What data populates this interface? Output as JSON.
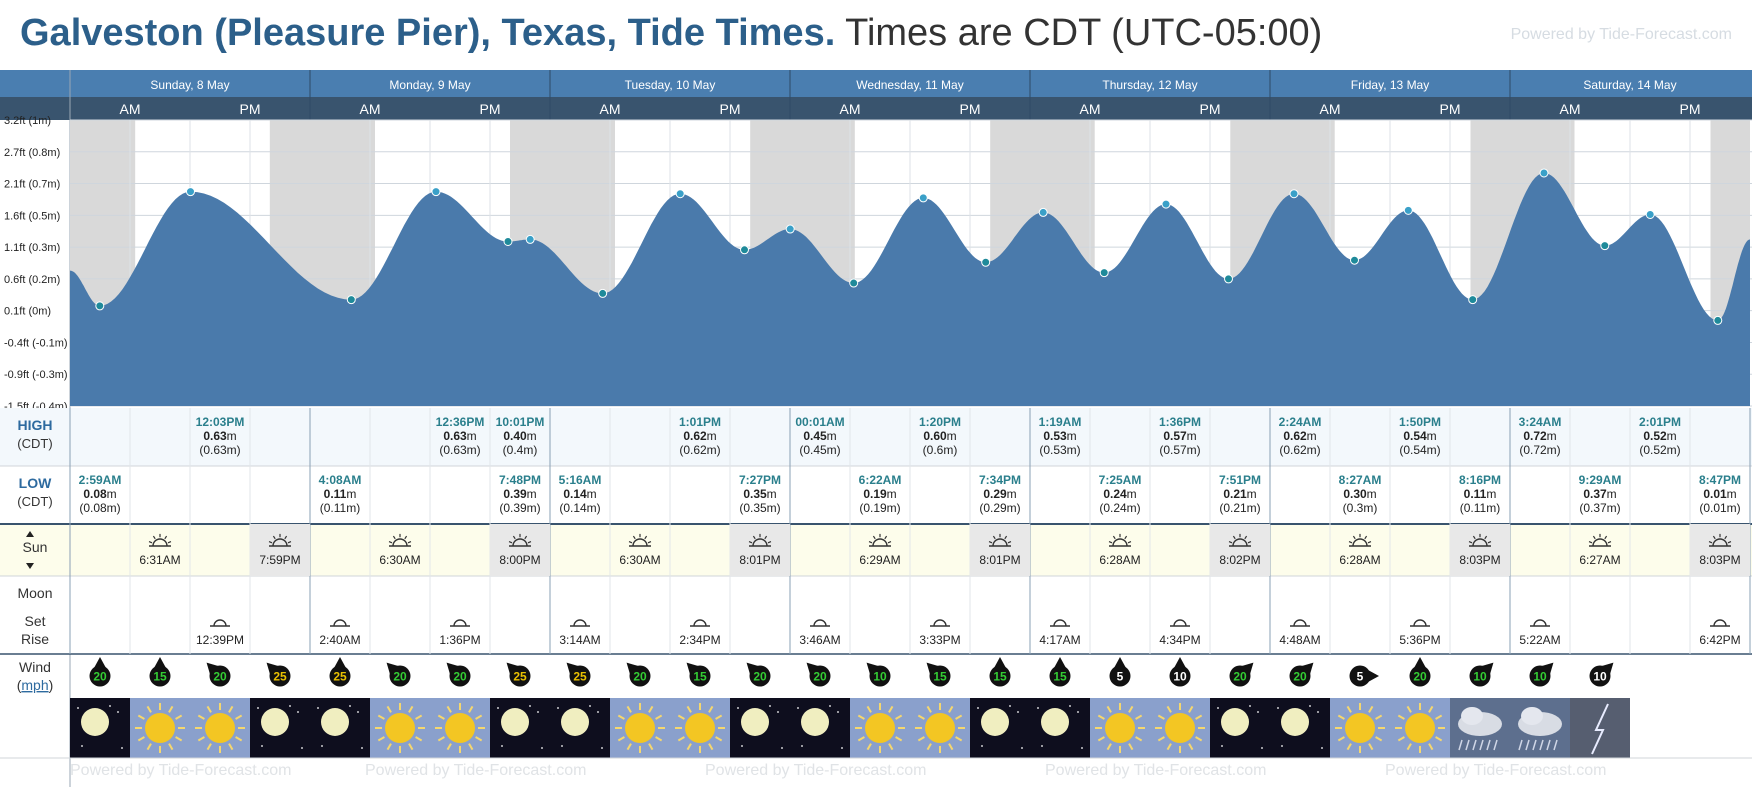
{
  "title": {
    "location": "Galveston (Pleasure Pier), Texas, Tide Times.",
    "tz": "Times are CDT (UTC-05:00)"
  },
  "powered": "Powered by Tide-Forecast.com",
  "watermark": "Powered by Tide-Forecast.com",
  "days": [
    "Sunday, 8 May",
    "Monday, 9 May",
    "Tuesday, 10 May",
    "Wednesday, 11 May",
    "Thursday, 12 May",
    "Friday, 13 May",
    "Saturday, 14 May"
  ],
  "ampm": [
    "AM",
    "PM"
  ],
  "row_labels": {
    "high": "HIGH",
    "high_tz": "(CDT)",
    "low": "LOW",
    "low_tz": "(CDT)",
    "sun": "Sun",
    "moon": "Moon",
    "moon_set": "Set",
    "moon_rise": "Rise",
    "wind": "Wind",
    "wind_unit": "mph"
  },
  "colors": {
    "header_bg": "#4a7eb0",
    "ampm_bg": "#39546e",
    "water": "#4a7aab",
    "night": "#d9d9d9",
    "high_bg": "#f3f8fc",
    "sun_bg": "#fdfdeb",
    "sunset_bg": "#e8e8e8",
    "label_blue": "#2d6a9f",
    "time_teal": "#2a7f8c"
  },
  "chart_data": {
    "type": "area",
    "ylabel": "",
    "y_ticks": [
      "3.2ft (1m)",
      "2.7ft (0.8m)",
      "2.1ft (0.7m)",
      "1.6ft (0.5m)",
      "1.1ft (0.3m)",
      "0.6ft (0.2m)",
      "0.1ft (0m)",
      "-0.4ft (-0.1m)",
      "-0.9ft (-0.3m)",
      "-1.5ft (-0.4m)"
    ],
    "y_tick_values": [
      0.975,
      0.822,
      0.669,
      0.516,
      0.363,
      0.21,
      0.057,
      -0.096,
      -0.249,
      -0.402
    ],
    "ylim": [
      -0.402,
      0.975
    ],
    "x_range_hours": [
      0,
      168
    ],
    "extremes": [
      {
        "time": "2:59AM",
        "t": 2.98,
        "h": 0.08,
        "type": "low"
      },
      {
        "time": "12:03PM",
        "t": 12.05,
        "h": 0.63,
        "type": "high"
      },
      {
        "time": "4:08AM",
        "t": 28.13,
        "h": 0.11,
        "type": "low"
      },
      {
        "time": "12:36PM",
        "t": 36.6,
        "h": 0.63,
        "type": "high"
      },
      {
        "time": "7:48PM",
        "t": 43.8,
        "h": 0.39,
        "type": "low"
      },
      {
        "time": "10:01PM",
        "t": 46.02,
        "h": 0.4,
        "type": "high"
      },
      {
        "time": "5:16AM",
        "t": 53.27,
        "h": 0.14,
        "type": "low"
      },
      {
        "time": "1:01PM",
        "t": 61.02,
        "h": 0.62,
        "type": "high"
      },
      {
        "time": "7:27PM",
        "t": 67.45,
        "h": 0.35,
        "type": "low"
      },
      {
        "time": "00:01AM",
        "t": 72.02,
        "h": 0.45,
        "type": "high"
      },
      {
        "time": "6:22AM",
        "t": 78.37,
        "h": 0.19,
        "type": "low"
      },
      {
        "time": "1:20PM",
        "t": 85.33,
        "h": 0.6,
        "type": "high"
      },
      {
        "time": "7:34PM",
        "t": 91.57,
        "h": 0.29,
        "type": "low"
      },
      {
        "time": "1:19AM",
        "t": 97.32,
        "h": 0.53,
        "type": "high"
      },
      {
        "time": "7:25AM",
        "t": 103.42,
        "h": 0.24,
        "type": "low"
      },
      {
        "time": "1:36PM",
        "t": 109.6,
        "h": 0.57,
        "type": "high"
      },
      {
        "time": "7:51PM",
        "t": 115.85,
        "h": 0.21,
        "type": "low"
      },
      {
        "time": "2:24AM",
        "t": 122.4,
        "h": 0.62,
        "type": "high"
      },
      {
        "time": "8:27AM",
        "t": 128.45,
        "h": 0.3,
        "type": "low"
      },
      {
        "time": "1:50PM",
        "t": 133.83,
        "h": 0.54,
        "type": "high"
      },
      {
        "time": "8:16PM",
        "t": 140.27,
        "h": 0.11,
        "type": "low"
      },
      {
        "time": "3:24AM",
        "t": 147.4,
        "h": 0.72,
        "type": "high"
      },
      {
        "time": "9:29AM",
        "t": 153.48,
        "h": 0.37,
        "type": "low"
      },
      {
        "time": "2:01PM",
        "t": 158.02,
        "h": 0.52,
        "type": "high"
      },
      {
        "time": "8:47PM",
        "t": 164.78,
        "h": 0.01,
        "type": "low"
      }
    ],
    "start_level": 0.25,
    "end_level": 0.4
  },
  "high_cells": [
    null,
    null,
    {
      "time": "12:03PM",
      "m": "0.63",
      "ft": "(0.63m)"
    },
    null,
    null,
    null,
    {
      "time": "12:36PM",
      "m": "0.63",
      "ft": "(0.63m)"
    },
    {
      "time": "10:01PM",
      "m": "0.40",
      "ft": "(0.4m)"
    },
    null,
    null,
    {
      "time": "1:01PM",
      "m": "0.62",
      "ft": "(0.62m)"
    },
    null,
    {
      "time": "00:01AM",
      "m": "0.45",
      "ft": "(0.45m)"
    },
    null,
    {
      "time": "1:20PM",
      "m": "0.60",
      "ft": "(0.6m)"
    },
    null,
    {
      "time": "1:19AM",
      "m": "0.53",
      "ft": "(0.53m)"
    },
    null,
    {
      "time": "1:36PM",
      "m": "0.57",
      "ft": "(0.57m)"
    },
    null,
    {
      "time": "2:24AM",
      "m": "0.62",
      "ft": "(0.62m)"
    },
    null,
    {
      "time": "1:50PM",
      "m": "0.54",
      "ft": "(0.54m)"
    },
    null,
    {
      "time": "3:24AM",
      "m": "0.72",
      "ft": "(0.72m)"
    },
    null,
    {
      "time": "2:01PM",
      "m": "0.52",
      "ft": "(0.52m)"
    },
    null
  ],
  "low_cells": [
    {
      "time": "2:59AM",
      "m": "0.08",
      "ft": "(0.08m)"
    },
    null,
    null,
    null,
    {
      "time": "4:08AM",
      "m": "0.11",
      "ft": "(0.11m)"
    },
    null,
    null,
    {
      "time": "7:48PM",
      "m": "0.39",
      "ft": "(0.39m)"
    },
    {
      "time": "5:16AM",
      "m": "0.14",
      "ft": "(0.14m)"
    },
    null,
    null,
    {
      "time": "7:27PM",
      "m": "0.35",
      "ft": "(0.35m)"
    },
    null,
    {
      "time": "6:22AM",
      "m": "0.19",
      "ft": "(0.19m)"
    },
    null,
    {
      "time": "7:34PM",
      "m": "0.29",
      "ft": "(0.29m)"
    },
    null,
    {
      "time": "7:25AM",
      "m": "0.24",
      "ft": "(0.24m)"
    },
    null,
    {
      "time": "7:51PM",
      "m": "0.21",
      "ft": "(0.21m)"
    },
    null,
    {
      "time": "8:27AM",
      "m": "0.30",
      "ft": "(0.3m)"
    },
    null,
    {
      "time": "8:16PM",
      "m": "0.11",
      "ft": "(0.11m)"
    },
    null,
    {
      "time": "9:29AM",
      "m": "0.37",
      "ft": "(0.37m)"
    },
    null,
    {
      "time": "8:47PM",
      "m": "0.01",
      "ft": "(0.01m)"
    }
  ],
  "sun_cells": [
    null,
    {
      "type": "rise",
      "time": "6:31AM"
    },
    null,
    {
      "type": "set",
      "time": "7:59PM"
    },
    null,
    {
      "type": "rise",
      "time": "6:30AM"
    },
    null,
    {
      "type": "set",
      "time": "8:00PM"
    },
    null,
    {
      "type": "rise",
      "time": "6:30AM"
    },
    null,
    {
      "type": "set",
      "time": "8:01PM"
    },
    null,
    {
      "type": "rise",
      "time": "6:29AM"
    },
    null,
    {
      "type": "set",
      "time": "8:01PM"
    },
    null,
    {
      "type": "rise",
      "time": "6:28AM"
    },
    null,
    {
      "type": "set",
      "time": "8:02PM"
    },
    null,
    {
      "type": "rise",
      "time": "6:28AM"
    },
    null,
    {
      "type": "set",
      "time": "8:03PM"
    },
    null,
    {
      "type": "rise",
      "time": "6:27AM"
    },
    null,
    {
      "type": "set",
      "time": "8:03PM"
    }
  ],
  "moon_cells": [
    null,
    null,
    "12:39PM",
    null,
    "2:40AM",
    null,
    "1:36PM",
    null,
    "3:14AM",
    null,
    "2:34PM",
    null,
    "3:46AM",
    null,
    "3:33PM",
    null,
    "4:17AM",
    null,
    "4:34PM",
    null,
    "4:48AM",
    null,
    "5:36PM",
    null,
    "5:22AM",
    null,
    null,
    "6:42PM"
  ],
  "wind": [
    {
      "v": "20",
      "c": "#33cc33",
      "dir": "N"
    },
    {
      "v": "15",
      "c": "#33cc33",
      "dir": "N"
    },
    {
      "v": "20",
      "c": "#33cc33",
      "dir": "NW"
    },
    {
      "v": "25",
      "c": "#e8c000",
      "dir": "NW"
    },
    {
      "v": "25",
      "c": "#e8c000",
      "dir": "N"
    },
    {
      "v": "20",
      "c": "#33cc33",
      "dir": "NW"
    },
    {
      "v": "20",
      "c": "#33cc33",
      "dir": "NW"
    },
    {
      "v": "25",
      "c": "#e8c000",
      "dir": "NW"
    },
    {
      "v": "25",
      "c": "#e8c000",
      "dir": "NW"
    },
    {
      "v": "20",
      "c": "#33cc33",
      "dir": "NW"
    },
    {
      "v": "15",
      "c": "#33cc33",
      "dir": "NW"
    },
    {
      "v": "20",
      "c": "#33cc33",
      "dir": "NW"
    },
    {
      "v": "20",
      "c": "#33cc33",
      "dir": "NW"
    },
    {
      "v": "10",
      "c": "#33cc33",
      "dir": "NW"
    },
    {
      "v": "15",
      "c": "#33cc33",
      "dir": "NW"
    },
    {
      "v": "15",
      "c": "#33cc33",
      "dir": "N"
    },
    {
      "v": "15",
      "c": "#33cc33",
      "dir": "N"
    },
    {
      "v": "5",
      "c": "#ffffff",
      "dir": "N"
    },
    {
      "v": "10",
      "c": "#ffffff",
      "dir": "N"
    },
    {
      "v": "20",
      "c": "#33cc33",
      "dir": "NE"
    },
    {
      "v": "20",
      "c": "#33cc33",
      "dir": "NE"
    },
    {
      "v": "5",
      "c": "#ffffff",
      "dir": "E"
    },
    {
      "v": "20",
      "c": "#33cc33",
      "dir": "N"
    },
    {
      "v": "10",
      "c": "#33cc33",
      "dir": "NE"
    },
    {
      "v": "10",
      "c": "#33cc33",
      "dir": "NE"
    },
    {
      "v": "10",
      "c": "#ffffff",
      "dir": "NE"
    }
  ],
  "weather": [
    "moon",
    "sun",
    "sun",
    "moon",
    "moon",
    "sun",
    "sun",
    "moon",
    "moon",
    "sun",
    "sun",
    "moon",
    "moon",
    "sun",
    "sun",
    "moon",
    "moon",
    "sun",
    "sun",
    "moon",
    "moon",
    "sun",
    "sun",
    "storm",
    "storm",
    "lightning"
  ]
}
